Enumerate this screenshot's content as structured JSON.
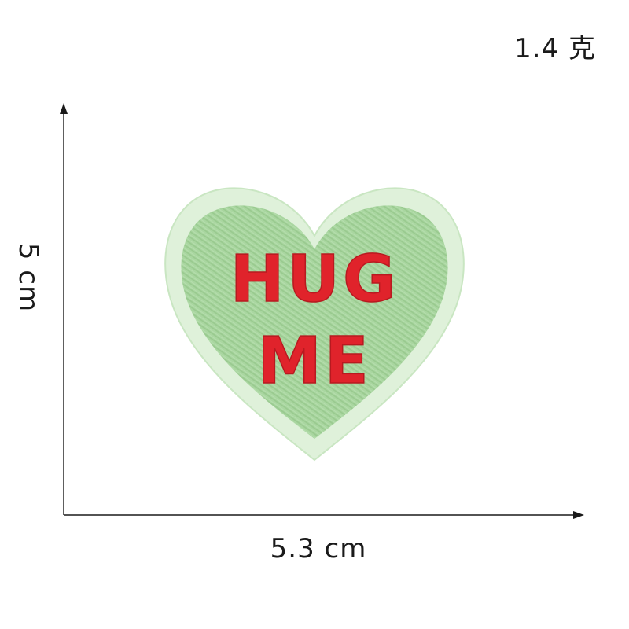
{
  "labels": {
    "weight": "1.4 克",
    "height": "5 cm",
    "width": "5.3 cm"
  },
  "patch": {
    "text_line_1": "HUG",
    "text_line_2": "ME",
    "colors": {
      "fill": "#a9d6a0",
      "border": "#dff1da",
      "text": "#e0232b"
    }
  }
}
